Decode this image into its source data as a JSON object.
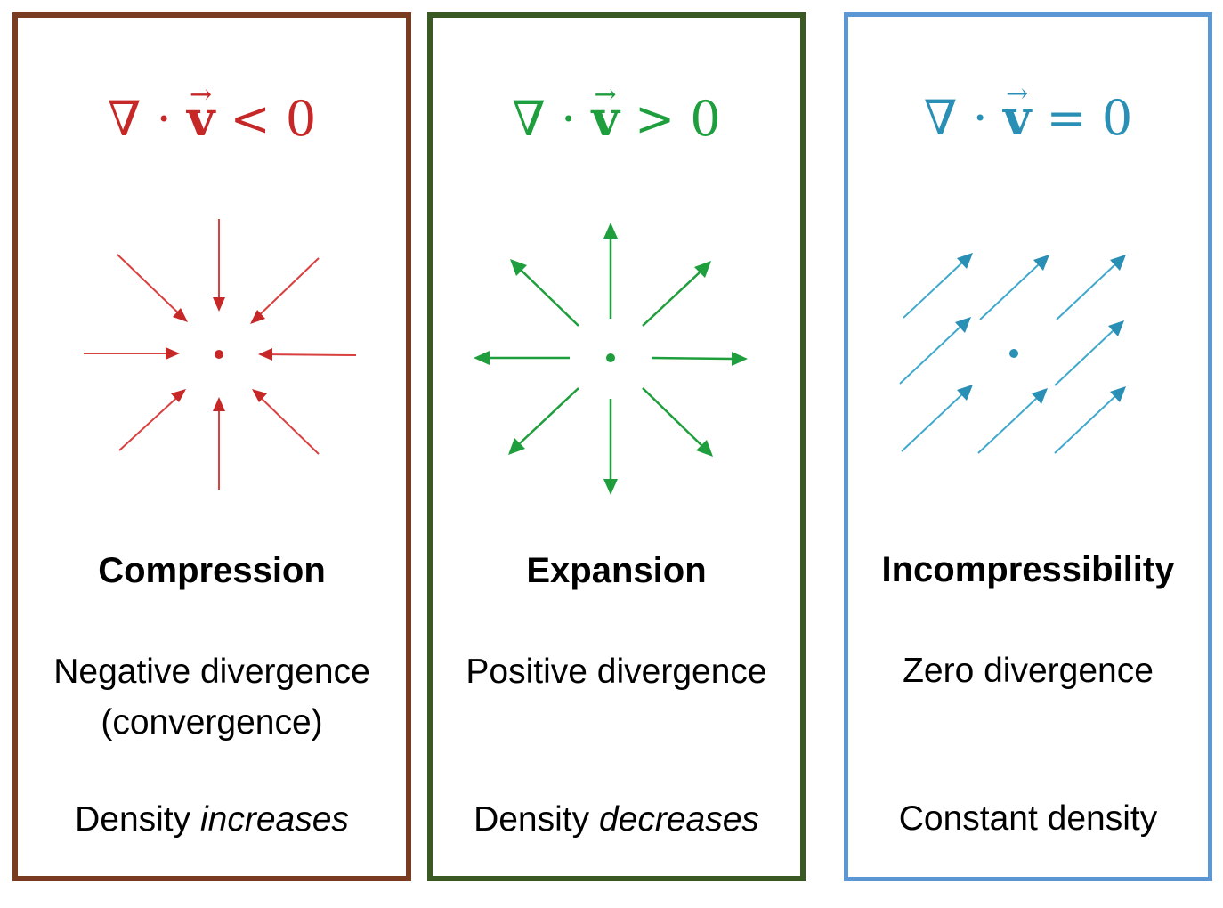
{
  "panels": [
    {
      "formula": {
        "nabla": "∇",
        "dot": "·",
        "vector": "v",
        "arrow": "→",
        "relation": "<",
        "rhs": "0"
      },
      "title": "Compression",
      "desc_line1": "Negative divergence",
      "desc_line2": "(convergence)",
      "density_prefix": "Density ",
      "density_emphasis": "increases",
      "color": "#c62828",
      "border_color": "#7a3c20",
      "field": "converging"
    },
    {
      "formula": {
        "nabla": "∇",
        "dot": "·",
        "vector": "v",
        "arrow": "→",
        "relation": ">",
        "rhs": "0"
      },
      "title": "Expansion",
      "desc_line1": "Positive divergence",
      "density_prefix": "Density ",
      "density_emphasis": "decreases",
      "color": "#1e9e3c",
      "border_color": "#3b5a23",
      "field": "diverging"
    },
    {
      "formula": {
        "nabla": "∇",
        "dot": "·",
        "vector": "v",
        "arrow": "→",
        "relation": "=",
        "rhs": "0"
      },
      "title": "Incompressibility",
      "desc_line1": "Zero divergence",
      "density_text": "Constant density",
      "color": "#2a8fb4",
      "border_color": "#5a97d4",
      "field": "uniform"
    }
  ]
}
